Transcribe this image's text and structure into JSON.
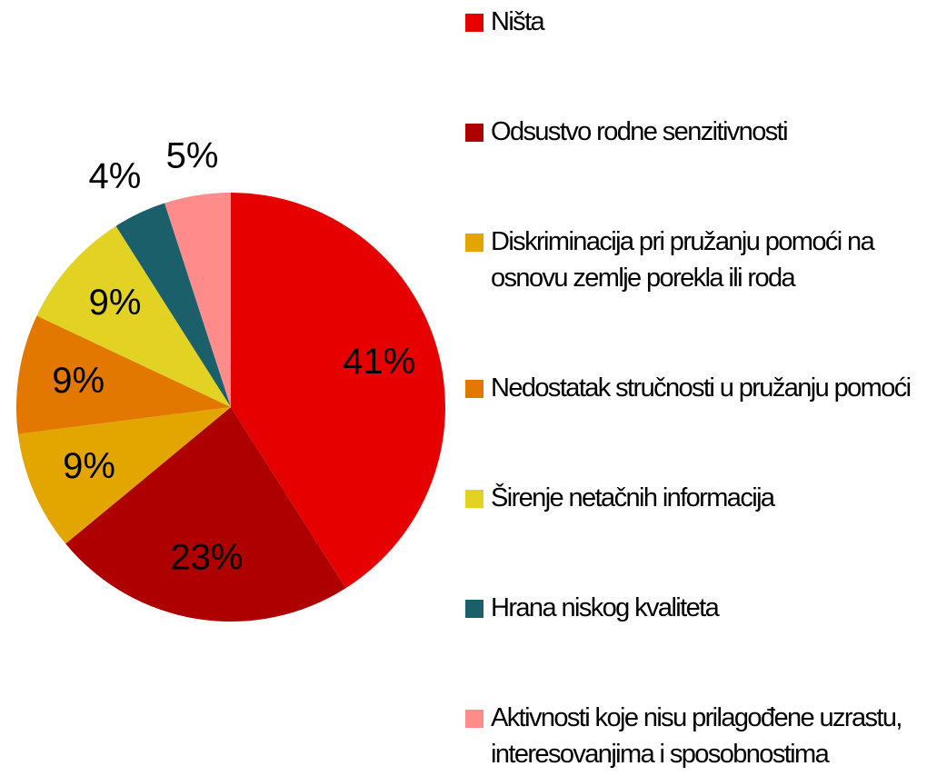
{
  "chart_data": {
    "type": "pie",
    "categories": [
      "Ništa",
      "Odsustvo rodne senzitivnosti",
      "Diskriminacija pri pružanju pomoći na osnovu zemlje porekla ili roda",
      "Nedostatak stručnosti u pružanju pomoći",
      "Širenje netačnih informacija",
      "Hrana niskog kvaliteta",
      "Aktivnosti koje nisu prilagođene uzrastu, interesovanjima i sposobnostima"
    ],
    "values": [
      41,
      23,
      9,
      9,
      9,
      4,
      5
    ],
    "value_labels": [
      "41%",
      "23%",
      "9%",
      "9%",
      "9%",
      "4%",
      "5%"
    ],
    "colors": [
      "#e60000",
      "#ae0000",
      "#e3a600",
      "#e27800",
      "#e2d223",
      "#1b5f6b",
      "#ff8b8b"
    ]
  }
}
